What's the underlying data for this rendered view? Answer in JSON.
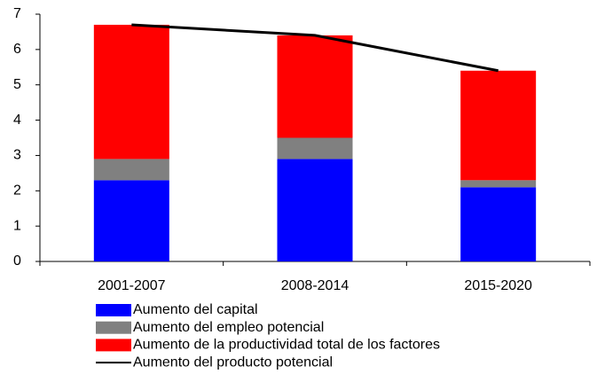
{
  "chart_data": {
    "type": "bar",
    "stacked": true,
    "categories": [
      "2001-2007",
      "2008-2014",
      "2015-2020"
    ],
    "series": [
      {
        "name": "Aumento del capital",
        "color": "#0000ff",
        "values": [
          2.3,
          2.9,
          2.1
        ]
      },
      {
        "name": "Aumento del empleo potencial",
        "color": "#808080",
        "values": [
          0.6,
          0.6,
          0.2
        ]
      },
      {
        "name": "Aumento de la productividad total de los factores",
        "color": "#ff0000",
        "values": [
          3.8,
          2.9,
          3.1
        ]
      },
      {
        "name": "Aumento del producto potencial",
        "color": "#000000",
        "type": "line",
        "values": [
          6.7,
          6.4,
          5.4
        ]
      }
    ],
    "ylim": [
      0,
      7
    ],
    "yticks": [
      0,
      1,
      2,
      3,
      4,
      5,
      6,
      7
    ],
    "legend": "bottom"
  }
}
